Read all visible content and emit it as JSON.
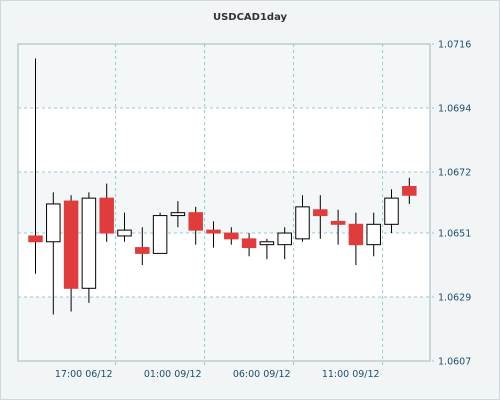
{
  "chart_data": {
    "type": "candlestick",
    "title": "USDCAD1day",
    "y_ticks": [
      "1.0716",
      "1.0694",
      "1.0672",
      "1.0651",
      "1.0629",
      "1.0607"
    ],
    "ylim": [
      1.0607,
      1.0716
    ],
    "x_ticks": [
      "17:00 06/12",
      "01:00 09/12",
      "06:00 09/12",
      "11:00 09/12"
    ],
    "x_tick_index": [
      4.5,
      9.5,
      14.5,
      19.5
    ],
    "grid": true,
    "colors": {
      "up_body": "#ffffff",
      "down_body": "#e03c3c",
      "wick": "#000000",
      "grid": "#9ac7d2",
      "plot_bg": "#ffffff",
      "alt_band": "#f4f7f8",
      "axis_text": "#1f4e6e"
    },
    "candles": [
      {
        "open": 1.065,
        "high": 1.0711,
        "low": 1.0637,
        "close": 1.0648
      },
      {
        "open": 1.0648,
        "high": 1.0665,
        "low": 1.0623,
        "close": 1.0661
      },
      {
        "open": 1.0662,
        "high": 1.0664,
        "low": 1.0624,
        "close": 1.0632
      },
      {
        "open": 1.0632,
        "high": 1.0665,
        "low": 1.0627,
        "close": 1.0663
      },
      {
        "open": 1.0663,
        "high": 1.0668,
        "low": 1.0648,
        "close": 1.0651
      },
      {
        "open": 1.065,
        "high": 1.0658,
        "low": 1.0648,
        "close": 1.0652
      },
      {
        "open": 1.0646,
        "high": 1.0653,
        "low": 1.064,
        "close": 1.0644
      },
      {
        "open": 1.0644,
        "high": 1.0658,
        "low": 1.0644,
        "close": 1.0657
      },
      {
        "open": 1.0657,
        "high": 1.0662,
        "low": 1.0653,
        "close": 1.0658
      },
      {
        "open": 1.0658,
        "high": 1.066,
        "low": 1.0647,
        "close": 1.0652
      },
      {
        "open": 1.0652,
        "high": 1.0655,
        "low": 1.0646,
        "close": 1.0651
      },
      {
        "open": 1.0651,
        "high": 1.0653,
        "low": 1.0647,
        "close": 1.0649
      },
      {
        "open": 1.0649,
        "high": 1.0651,
        "low": 1.0643,
        "close": 1.0646
      },
      {
        "open": 1.0647,
        "high": 1.0649,
        "low": 1.0642,
        "close": 1.0648
      },
      {
        "open": 1.0647,
        "high": 1.0653,
        "low": 1.0642,
        "close": 1.0651
      },
      {
        "open": 1.0649,
        "high": 1.0664,
        "low": 1.0648,
        "close": 1.066
      },
      {
        "open": 1.0659,
        "high": 1.0664,
        "low": 1.0649,
        "close": 1.0657
      },
      {
        "open": 1.0655,
        "high": 1.0659,
        "low": 1.0647,
        "close": 1.0654
      },
      {
        "open": 1.0654,
        "high": 1.0658,
        "low": 1.064,
        "close": 1.0647
      },
      {
        "open": 1.0647,
        "high": 1.0658,
        "low": 1.0643,
        "close": 1.0654
      },
      {
        "open": 1.0654,
        "high": 1.0666,
        "low": 1.0651,
        "close": 1.0663
      },
      {
        "open": 1.0667,
        "high": 1.067,
        "low": 1.0661,
        "close": 1.0664
      }
    ]
  }
}
